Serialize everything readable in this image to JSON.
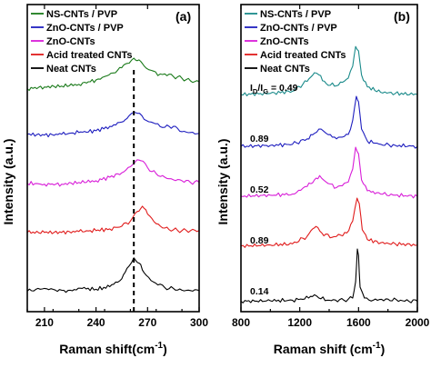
{
  "figure": {
    "ylabel": "Intensity (a.u.)"
  },
  "chart_data": [
    {
      "type": "line",
      "panel": "(a)",
      "xlabel": "Raman shift(cm",
      "xlabel_sup": "-1",
      "xlabel_close": ")",
      "xlim": [
        200,
        300
      ],
      "xticks": [
        "210",
        "240",
        "270",
        "300"
      ],
      "xtick_values": [
        210,
        240,
        270,
        300
      ],
      "y_ticks_shown": false,
      "legend_position": "top-left",
      "vertical_dashed_line_x": 262,
      "series": [
        {
          "name": "NS-CNTs / PVP",
          "color": "#1a7a1a",
          "offset": 4,
          "x": [
            200,
            210,
            220,
            230,
            240,
            245,
            250,
            255,
            258,
            262,
            265,
            268,
            272,
            276,
            280,
            285,
            290,
            295,
            300
          ],
          "y": [
            0.3,
            0.34,
            0.36,
            0.4,
            0.5,
            0.58,
            0.66,
            0.78,
            0.88,
            1.0,
            0.96,
            0.82,
            0.72,
            0.6,
            0.64,
            0.58,
            0.54,
            0.48,
            0.46
          ]
        },
        {
          "name": "ZnO-CNTs / PVP",
          "color": "#1f1fbf",
          "offset": 3,
          "x": [
            200,
            210,
            220,
            230,
            240,
            248,
            255,
            258,
            262,
            264,
            268,
            272,
            276,
            280,
            285,
            290,
            295,
            300
          ],
          "y": [
            0.38,
            0.36,
            0.38,
            0.42,
            0.46,
            0.56,
            0.66,
            0.74,
            0.88,
            0.86,
            0.72,
            0.66,
            0.62,
            0.54,
            0.56,
            0.44,
            0.42,
            0.4
          ]
        },
        {
          "name": "ZnO-CNTs",
          "color": "#d81ed8",
          "offset": 2,
          "x": [
            200,
            210,
            220,
            230,
            240,
            248,
            255,
            260,
            264,
            266,
            270,
            275,
            280,
            285,
            290,
            295,
            300
          ],
          "y": [
            0.38,
            0.36,
            0.36,
            0.4,
            0.44,
            0.52,
            0.62,
            0.76,
            0.92,
            0.9,
            0.74,
            0.6,
            0.52,
            0.46,
            0.44,
            0.4,
            0.4
          ]
        },
        {
          "name": "Acid treated CNTs",
          "color": "#e01c1c",
          "offset": 1,
          "x": [
            200,
            210,
            220,
            230,
            240,
            248,
            255,
            260,
            264,
            267,
            270,
            275,
            280,
            285,
            290,
            295,
            300
          ],
          "y": [
            0.38,
            0.38,
            0.38,
            0.4,
            0.42,
            0.46,
            0.52,
            0.64,
            0.86,
            0.98,
            0.8,
            0.58,
            0.48,
            0.44,
            0.42,
            0.42,
            0.42
          ]
        },
        {
          "name": "Neat CNTs",
          "color": "#000000",
          "offset": 0,
          "x": [
            200,
            205,
            210,
            215,
            220,
            225,
            232,
            240,
            248,
            255,
            258,
            262,
            265,
            268,
            272,
            276,
            280,
            285,
            290,
            295,
            300
          ],
          "y": [
            0.16,
            0.2,
            0.22,
            0.2,
            0.18,
            0.18,
            0.22,
            0.2,
            0.26,
            0.44,
            0.68,
            0.92,
            0.8,
            0.58,
            0.4,
            0.3,
            0.24,
            0.22,
            0.18,
            0.17,
            0.17
          ]
        }
      ]
    },
    {
      "type": "line",
      "panel": "(b)",
      "xlabel": "Raman shift (cm",
      "xlabel_sup": "-1",
      "xlabel_close": ")",
      "xlim": [
        800,
        2000
      ],
      "xticks": [
        "800",
        "1200",
        "1600",
        "2000"
      ],
      "xtick_values": [
        800,
        1200,
        1600,
        2000
      ],
      "y_ticks_shown": false,
      "legend_position": "top-left",
      "id_ig_label": "I",
      "id_ig_sub_d": "D",
      "id_ig_slash": "/I",
      "id_ig_sub_g": "G",
      "id_ig_eq": " = 0.49",
      "ratio_labels": [
        "0.89",
        "0.52",
        "0.89",
        "0.14"
      ],
      "series": [
        {
          "name": "NS-CNTs / PVP",
          "color": "#1a8a8a",
          "offset": 4,
          "ratio": 0.49,
          "x": [
            800,
            1000,
            1150,
            1250,
            1300,
            1330,
            1380,
            1450,
            1530,
            1560,
            1580,
            1600,
            1620,
            1660,
            1750,
            1850,
            2000
          ],
          "y": [
            0.1,
            0.12,
            0.16,
            0.34,
            0.5,
            0.46,
            0.3,
            0.26,
            0.4,
            0.62,
            0.98,
            0.9,
            0.46,
            0.24,
            0.14,
            0.12,
            0.1
          ]
        },
        {
          "name": "ZnO-CNTs / PVP",
          "color": "#1f1fbf",
          "offset": 3,
          "ratio": 0.89,
          "x": [
            800,
            1000,
            1150,
            1250,
            1300,
            1345,
            1380,
            1450,
            1530,
            1560,
            1585,
            1600,
            1620,
            1660,
            1750,
            1850,
            2000
          ],
          "y": [
            0.08,
            0.1,
            0.12,
            0.22,
            0.32,
            0.4,
            0.32,
            0.22,
            0.3,
            0.56,
            1.0,
            0.9,
            0.4,
            0.18,
            0.12,
            0.1,
            0.08
          ]
        },
        {
          "name": "ZnO-CNTs",
          "color": "#d81ed8",
          "offset": 2,
          "ratio": 0.52,
          "x": [
            800,
            1000,
            1150,
            1250,
            1300,
            1335,
            1380,
            1450,
            1530,
            1560,
            1580,
            1600,
            1620,
            1660,
            1750,
            1850,
            2000
          ],
          "y": [
            0.1,
            0.12,
            0.14,
            0.28,
            0.4,
            0.48,
            0.36,
            0.26,
            0.36,
            0.6,
            1.0,
            0.88,
            0.4,
            0.2,
            0.14,
            0.12,
            0.1
          ]
        },
        {
          "name": "Acid treated CNTs",
          "color": "#e01c1c",
          "offset": 1,
          "ratio": 0.89,
          "x": [
            800,
            1000,
            1150,
            1250,
            1290,
            1310,
            1350,
            1420,
            1520,
            1560,
            1590,
            1605,
            1625,
            1660,
            1750,
            1850,
            2000
          ],
          "y": [
            0.12,
            0.14,
            0.16,
            0.3,
            0.44,
            0.48,
            0.36,
            0.28,
            0.36,
            0.58,
            1.0,
            0.9,
            0.42,
            0.24,
            0.18,
            0.16,
            0.14
          ]
        },
        {
          "name": "Neat CNTs",
          "color": "#000000",
          "offset": 0,
          "ratio": 0.14,
          "x": [
            800,
            1000,
            1150,
            1260,
            1300,
            1330,
            1400,
            1500,
            1560,
            1580,
            1592,
            1600,
            1610,
            1640,
            1700,
            1800,
            1900,
            2000
          ],
          "y": [
            0.04,
            0.05,
            0.06,
            0.1,
            0.16,
            0.1,
            0.06,
            0.06,
            0.1,
            0.4,
            1.0,
            0.88,
            0.3,
            0.1,
            0.06,
            0.08,
            0.05,
            0.04
          ]
        }
      ]
    }
  ]
}
